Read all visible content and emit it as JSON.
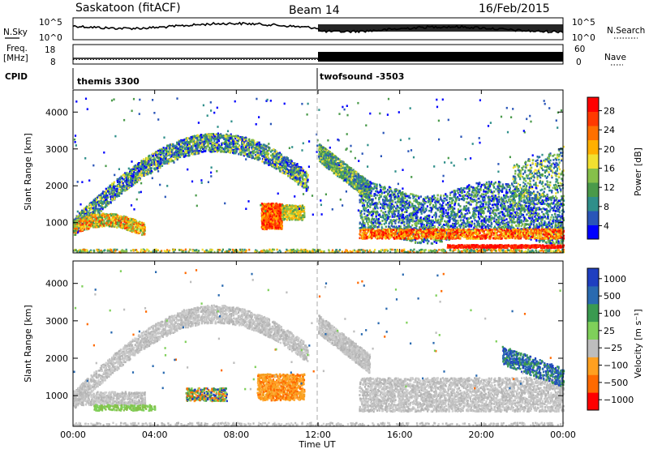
{
  "header": {
    "radar": "Saskatoon (fitACF)",
    "beam": "Beam 14",
    "date": "16/Feb/2015"
  },
  "params_panel": {
    "nsky_label": "N.Sky",
    "nsearch_label": "N.Search",
    "freq_label": "Freq.",
    "freq_unit": "[MHz]",
    "nave_label": "Nave",
    "cpid_label": "CPID",
    "noise_ticks": [
      "10^5",
      "10^0"
    ],
    "freq_ticks": [
      "18",
      "8"
    ],
    "nave_ticks": [
      "60",
      "0"
    ],
    "cpid_segments": [
      {
        "start_hour": 0,
        "label": "themis 3300"
      },
      {
        "start_hour": 12,
        "label": "twofsound -3503"
      }
    ]
  },
  "chart_data": [
    {
      "type": "heatmap",
      "name": "power",
      "ylabel": "Slant Range [km]",
      "ylim": [
        180,
        4600
      ],
      "yticks": [
        1000,
        2000,
        3000,
        4000
      ],
      "xlim": [
        0,
        24
      ],
      "colorbar": {
        "label": "Power [dB]",
        "ticks": [
          "28",
          "24",
          "20",
          "16",
          "12",
          "8",
          "4"
        ],
        "colors": [
          "#0000ff",
          "#2a55b8",
          "#2f8f8a",
          "#4a9a4a",
          "#86c04a",
          "#f2e030",
          "#ffb000",
          "#ff7000",
          "#ff3a00",
          "#ff0000"
        ]
      },
      "features": [
        {
          "t0": 0.0,
          "t1": 12.0,
          "desc_range_km": [
            700,
            3300
          ],
          "power_db": [
            4,
            28
          ]
        },
        {
          "t0": 9.2,
          "t1": 10.2,
          "desc_range_km": [
            800,
            1600
          ],
          "power_db": [
            20,
            28
          ]
        },
        {
          "t0": 12.0,
          "t1": 24.0,
          "desc_range_km": [
            300,
            2900
          ],
          "power_db": [
            4,
            28
          ]
        }
      ]
    },
    {
      "type": "heatmap",
      "name": "velocity",
      "ylabel": "Slant Range [km]",
      "ylim": [
        180,
        4600
      ],
      "yticks": [
        1000,
        2000,
        3000,
        4000
      ],
      "xlim": [
        0,
        24
      ],
      "xticks": [
        "00:00",
        "04:00",
        "08:00",
        "12:00",
        "16:00",
        "20:00",
        "00:00"
      ],
      "xlabel": "Time UT",
      "colorbar": {
        "label": "Velocity [m s⁻¹]",
        "ticks": [
          "1000",
          "500",
          "100",
          "25",
          "−25",
          "−100",
          "−500",
          "−1000"
        ],
        "colors": [
          "#ff0000",
          "#ff6a00",
          "#ffa020",
          "#bdbdbd",
          "#7fd05a",
          "#3a9a50",
          "#2a6ab0",
          "#1f3fc0"
        ]
      },
      "features": [
        {
          "t0": 0.0,
          "t1": 24.0,
          "desc_range_km": [
            500,
            3300
          ],
          "velocity_ms": [
            -25,
            25
          ]
        },
        {
          "t0": 9.0,
          "t1": 11.3,
          "desc_range_km": [
            900,
            1700
          ],
          "velocity_ms": [
            -500,
            -100
          ]
        },
        {
          "t0": 21.0,
          "t1": 24.0,
          "desc_range_km": [
            1300,
            2600
          ],
          "velocity_ms": [
            100,
            1000
          ]
        }
      ]
    }
  ]
}
